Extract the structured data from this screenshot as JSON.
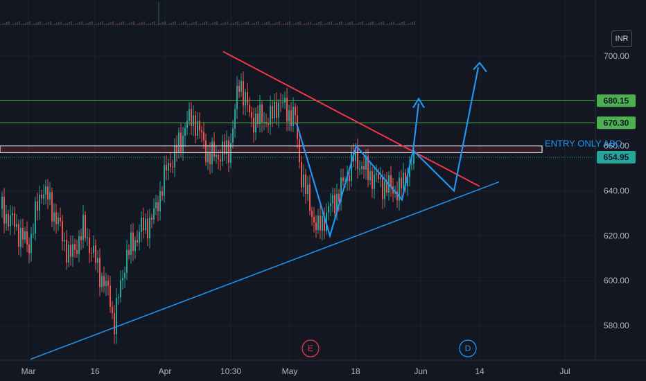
{
  "chart_data": {
    "type": "candlestick",
    "currency": "INR",
    "y_ticks": [
      "700.00",
      "660.00",
      "640.00",
      "620.00",
      "600.00",
      "580.00"
    ],
    "x_ticks": [
      "Mar",
      "16",
      "Apr",
      "10:30",
      "May",
      "18",
      "Jun",
      "14",
      "Jul"
    ],
    "ylim": [
      565,
      712
    ],
    "price_tags": [
      {
        "value": 680.15,
        "label": "680.15",
        "color": "#4caf50"
      },
      {
        "value": 670.3,
        "label": "670.30",
        "color": "#4caf50"
      },
      {
        "value": 654.95,
        "label": "654.95",
        "color": "#26a69a"
      }
    ],
    "horizontal_lines": [
      680.15,
      670.3
    ],
    "entry_zone": {
      "low": 657,
      "high": 660
    },
    "annotation": "ENTRY ONLY ABO",
    "event_markers": [
      {
        "label": "E",
        "color": "#f23645"
      },
      {
        "label": "D",
        "color": "#2196f3"
      }
    ],
    "grid": true,
    "colors": {
      "up": "#26a69a",
      "down": "#ef5350",
      "trendline": "#2196f3",
      "resistance": "#f23645",
      "level": "#4caf50"
    }
  }
}
